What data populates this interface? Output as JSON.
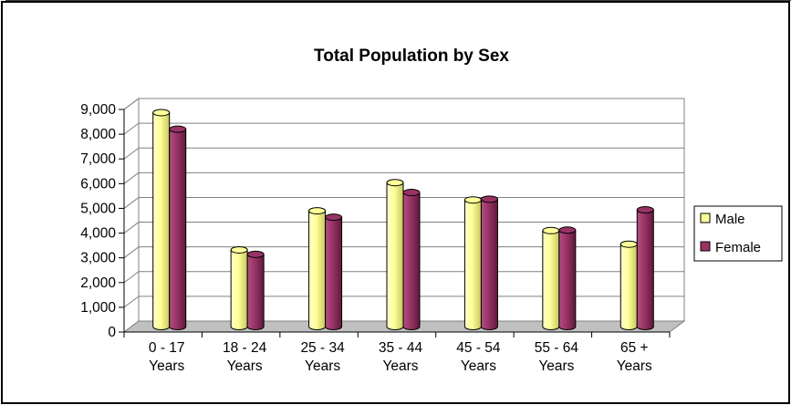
{
  "chart_data": {
    "type": "bar",
    "title": "Total Population by Sex",
    "categories": [
      [
        "0 - 17",
        "Years"
      ],
      [
        "18 - 24",
        "Years"
      ],
      [
        "25 - 34",
        "Years"
      ],
      [
        "35 - 44",
        "Years"
      ],
      [
        "45 - 54",
        "Years"
      ],
      [
        "55 - 64",
        "Years"
      ],
      [
        "65 +",
        "Years"
      ]
    ],
    "series": [
      {
        "name": "Male",
        "color": "#FFFF99",
        "values": [
          8650,
          3100,
          4680,
          5820,
          5120,
          3880,
          3330
        ]
      },
      {
        "name": "Female",
        "color": "#993366",
        "values": [
          7980,
          2920,
          4420,
          5420,
          5150,
          3900,
          4720
        ]
      }
    ],
    "ylim": [
      0,
      9000
    ],
    "yticks": [
      "0",
      "1,000",
      "2,000",
      "3,000",
      "4,000",
      "5,000",
      "6,000",
      "7,000",
      "8,000",
      "9,000"
    ],
    "grid": true,
    "legend": "right",
    "style": "3d-cylinder"
  }
}
